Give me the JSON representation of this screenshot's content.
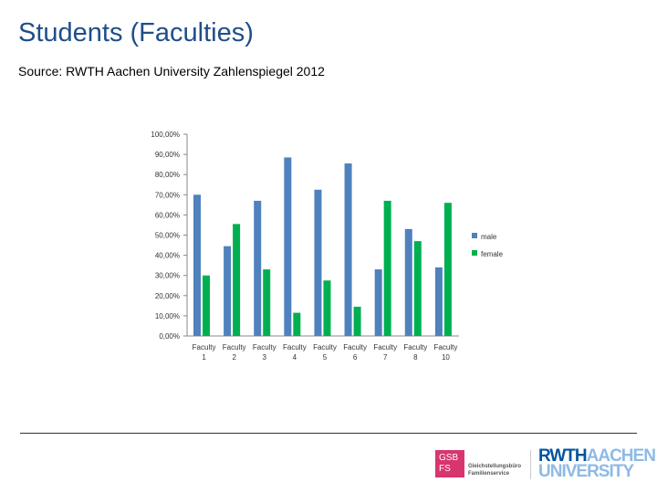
{
  "slide": {
    "title": "Students (Faculties)",
    "source": "Source: RWTH Aachen University Zahlenspiegel 2012"
  },
  "logos": {
    "gsb_mark": "GSB FS",
    "gsb_text": [
      "Gleichstellungsbüro",
      "Familienservice"
    ],
    "rwth_line1_a": "RWTH",
    "rwth_line1_b": "AACHEN",
    "rwth_line2": "UNIVERSITY"
  },
  "colors": {
    "male": "#4f81bd",
    "female": "#00b050",
    "axis": "#888888"
  },
  "chart_data": {
    "type": "bar",
    "categories": [
      "Faculty 1",
      "Faculty 2",
      "Faculty 3",
      "Faculty 4",
      "Faculty 5",
      "Faculty 6",
      "Faculty 7",
      "Faculty 8",
      "Faculty 10"
    ],
    "series": [
      {
        "name": "male",
        "values": [
          70,
          44.5,
          67,
          88.5,
          72.5,
          85.5,
          33,
          53,
          34
        ]
      },
      {
        "name": "female",
        "values": [
          30,
          55.5,
          33,
          11.5,
          27.5,
          14.5,
          67,
          47,
          66
        ]
      }
    ],
    "ylim": [
      0,
      100
    ],
    "yticks": [
      "0,00%",
      "10,00%",
      "20,00%",
      "30,00%",
      "40,00%",
      "50,00%",
      "60,00%",
      "70,00%",
      "80,00%",
      "90,00%",
      "100,00%"
    ],
    "legend_position": "right",
    "grid": false
  }
}
